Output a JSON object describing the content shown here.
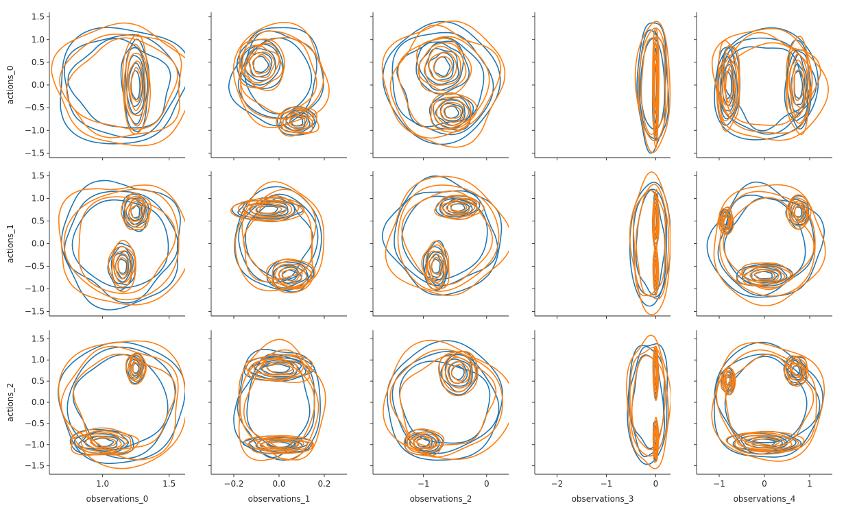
{
  "colors": {
    "series_a": "#1f77b4",
    "series_b": "#ff7f0e",
    "axes": "#262626"
  },
  "chart_data": {
    "type": "kde-contour-grid",
    "rows": [
      {
        "ylabel": "actions_0",
        "ylim": [
          -1.6,
          1.6
        ],
        "yticks": [
          -1.5,
          -1.0,
          -0.5,
          0.0,
          0.5,
          1.0,
          1.5
        ],
        "ytick_labels": [
          "−1.5",
          "−1.0",
          "−0.5",
          "0.0",
          "0.5",
          "1.0",
          "1.5"
        ]
      },
      {
        "ylabel": "actions_1",
        "ylim": [
          -1.6,
          1.6
        ],
        "yticks": [
          -1.5,
          -1.0,
          -0.5,
          0.0,
          0.5,
          1.0,
          1.5
        ],
        "ytick_labels": [
          "−1.5",
          "−1.0",
          "−0.5",
          "0.0",
          "0.5",
          "1.0",
          "1.5"
        ]
      },
      {
        "ylabel": "actions_2",
        "ylim": [
          -1.7,
          1.7
        ],
        "yticks": [
          -1.5,
          -1.0,
          -0.5,
          0.0,
          0.5,
          1.0,
          1.5
        ],
        "ytick_labels": [
          "−1.5",
          "−1.0",
          "−0.5",
          "0.0",
          "0.5",
          "1.0",
          "1.5"
        ]
      }
    ],
    "columns": [
      {
        "xlabel": "observations_0",
        "xlim": [
          0.6,
          1.62
        ],
        "xticks": [
          1.0,
          1.5
        ],
        "xtick_labels": [
          "1.0",
          "1.5"
        ]
      },
      {
        "xlabel": "observations_1",
        "xlim": [
          -0.3,
          0.3
        ],
        "xticks": [
          -0.2,
          0.0,
          0.2
        ],
        "xtick_labels": [
          "−0.2",
          "0.0",
          "0.2"
        ]
      },
      {
        "xlabel": "observations_2",
        "xlim": [
          -1.8,
          0.35
        ],
        "xticks": [
          -1,
          0
        ],
        "xtick_labels": [
          "−1",
          "0"
        ]
      },
      {
        "xlabel": "observations_3",
        "xlim": [
          -2.45,
          0.3
        ],
        "xticks": [
          -2,
          -1,
          0
        ],
        "xtick_labels": [
          "−2",
          "−1",
          "0"
        ]
      },
      {
        "xlabel": "observations_4",
        "xlim": [
          -1.5,
          1.5
        ],
        "xticks": [
          -1,
          0,
          1
        ],
        "xtick_labels": [
          "−1",
          "0",
          "1"
        ]
      }
    ],
    "series": [
      {
        "color": "#1f77b4"
      },
      {
        "color": "#ff7f0e"
      }
    ],
    "density_shapes": {
      "shape_note": "approximate contour outlines in data units, columns x rows",
      "outer": [
        [
          {
            "cx": 1.15,
            "cy": 0.0,
            "rx": 0.5,
            "ry": 1.28
          },
          {
            "cx": 0.0,
            "cy": 0.2,
            "rx": 0.2,
            "ry": 1.08
          },
          {
            "cx": -0.7,
            "cy": 0.05,
            "rx": 0.9,
            "ry": 1.3
          },
          {
            "cx": -0.05,
            "cy": 0.0,
            "rx": 0.32,
            "ry": 1.38
          },
          {
            "cx": 0.05,
            "cy": 0.0,
            "rx": 1.2,
            "ry": 1.2
          }
        ],
        [
          {
            "cx": 1.15,
            "cy": 0.0,
            "rx": 0.47,
            "ry": 1.35
          },
          {
            "cx": 0.0,
            "cy": 0.1,
            "rx": 0.19,
            "ry": 1.15
          },
          {
            "cx": -0.65,
            "cy": 0.15,
            "rx": 0.9,
            "ry": 1.25
          },
          {
            "cx": -0.1,
            "cy": 0.0,
            "rx": 0.4,
            "ry": 1.4
          },
          {
            "cx": 0.05,
            "cy": 0.0,
            "rx": 1.2,
            "ry": 1.25
          }
        ],
        [
          {
            "cx": 1.15,
            "cy": 0.0,
            "rx": 0.47,
            "ry": 1.45
          },
          {
            "cx": 0.0,
            "cy": -0.05,
            "rx": 0.19,
            "ry": 1.35
          },
          {
            "cx": -0.65,
            "cy": 0.0,
            "rx": 0.95,
            "ry": 1.35
          },
          {
            "cx": -0.15,
            "cy": 0.0,
            "rx": 0.42,
            "ry": 1.45
          },
          {
            "cx": 0.05,
            "cy": 0.0,
            "rx": 1.2,
            "ry": 1.35
          }
        ]
      ],
      "modes": [
        [
          [
            {
              "cx": 1.25,
              "cy": 0.0,
              "rx": 0.1,
              "ry": 1.0
            }
          ],
          [
            {
              "cx": -0.08,
              "cy": 0.45,
              "rx": 0.1,
              "ry": 0.55
            },
            {
              "cx": 0.08,
              "cy": -0.8,
              "rx": 0.09,
              "ry": 0.3
            }
          ],
          [
            {
              "cx": -0.7,
              "cy": 0.4,
              "rx": 0.4,
              "ry": 0.6
            },
            {
              "cx": -0.55,
              "cy": -0.6,
              "rx": 0.35,
              "ry": 0.4
            }
          ],
          [
            {
              "cx": 0.0,
              "cy": 0.0,
              "rx": 0.06,
              "ry": 1.25
            }
          ],
          [
            {
              "cx": -0.8,
              "cy": 0.0,
              "rx": 0.25,
              "ry": 0.9
            },
            {
              "cx": 0.75,
              "cy": 0.0,
              "rx": 0.28,
              "ry": 0.95
            }
          ]
        ],
        [
          [
            {
              "cx": 1.25,
              "cy": 0.7,
              "rx": 0.1,
              "ry": 0.4
            },
            {
              "cx": 1.15,
              "cy": -0.5,
              "rx": 0.1,
              "ry": 0.5
            }
          ],
          [
            {
              "cx": -0.05,
              "cy": 0.75,
              "rx": 0.15,
              "ry": 0.25
            },
            {
              "cx": 0.05,
              "cy": -0.7,
              "rx": 0.1,
              "ry": 0.35
            }
          ],
          [
            {
              "cx": -0.45,
              "cy": 0.8,
              "rx": 0.35,
              "ry": 0.25
            },
            {
              "cx": -0.8,
              "cy": -0.5,
              "rx": 0.2,
              "ry": 0.5
            }
          ],
          [
            {
              "cx": 0.0,
              "cy": 0.5,
              "rx": 0.06,
              "ry": 0.6
            },
            {
              "cx": 0.0,
              "cy": -0.6,
              "rx": 0.05,
              "ry": 0.5
            }
          ],
          [
            {
              "cx": 0.75,
              "cy": 0.7,
              "rx": 0.25,
              "ry": 0.35
            },
            {
              "cx": -0.85,
              "cy": 0.5,
              "rx": 0.15,
              "ry": 0.3
            },
            {
              "cx": 0.0,
              "cy": -0.7,
              "rx": 0.6,
              "ry": 0.25
            }
          ]
        ],
        [
          [
            {
              "cx": 1.25,
              "cy": 0.8,
              "rx": 0.07,
              "ry": 0.35
            },
            {
              "cx": 1.0,
              "cy": -0.95,
              "rx": 0.25,
              "ry": 0.3
            }
          ],
          [
            {
              "cx": 0.0,
              "cy": 0.8,
              "rx": 0.15,
              "ry": 0.3
            },
            {
              "cx": 0.0,
              "cy": -1.0,
              "rx": 0.15,
              "ry": 0.2
            }
          ],
          [
            {
              "cx": -0.45,
              "cy": 0.7,
              "rx": 0.3,
              "ry": 0.5
            },
            {
              "cx": -1.0,
              "cy": -0.95,
              "rx": 0.3,
              "ry": 0.3
            }
          ],
          [
            {
              "cx": 0.0,
              "cy": 0.7,
              "rx": 0.05,
              "ry": 0.6
            },
            {
              "cx": 0.0,
              "cy": -0.9,
              "rx": 0.05,
              "ry": 0.5
            }
          ],
          [
            {
              "cx": 0.7,
              "cy": 0.75,
              "rx": 0.25,
              "ry": 0.35
            },
            {
              "cx": -0.8,
              "cy": 0.5,
              "rx": 0.15,
              "ry": 0.3
            },
            {
              "cx": 0.0,
              "cy": -0.95,
              "rx": 0.8,
              "ry": 0.25
            }
          ]
        ]
      ]
    }
  }
}
